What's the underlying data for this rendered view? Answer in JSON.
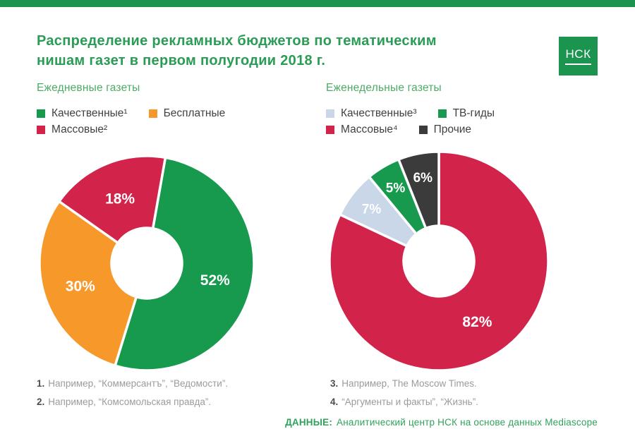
{
  "header": {
    "title_line1": "Распределение рекламных бюджетов по тематическим",
    "title_line2": "нишам газет в первом полугодии 2018 г.",
    "logo": "НСК"
  },
  "source": {
    "label": "ДАННЫЕ:",
    "text": "Аналитический центр НСК на основе данных Mediascope"
  },
  "colors": {
    "brand_green": "#1B9450",
    "title_green": "#2A9C55",
    "subtitle_green": "#4CAC64",
    "slice_green": "#189A4E",
    "slice_orange": "#F7982B",
    "slice_crimson": "#D2234B",
    "slice_lightblue": "#C9D7E8",
    "slice_dark": "#3B3B3B",
    "legend_text": "#414042",
    "footnote_number": "#4D4D4D",
    "footnote_text": "#9B9B9B"
  },
  "chart_data": [
    {
      "type": "pie",
      "subtype": "donut",
      "title": "Ежедневные газеты",
      "unit": "%",
      "start_angle_deg": 10,
      "slices": [
        {
          "label": "Качественные¹",
          "value": 52,
          "color": "#189A4E"
        },
        {
          "label": "Бесплатные",
          "value": 30,
          "color": "#F7982B"
        },
        {
          "label": "Массовые²",
          "value": 18,
          "color": "#D2234B"
        }
      ],
      "legend": [
        {
          "label": "Качественные¹",
          "color": "#189A4E"
        },
        {
          "label": "Бесплатные",
          "color": "#F7982B"
        },
        {
          "label": "Массовые²",
          "color": "#D2234B"
        }
      ],
      "footnotes": [
        {
          "num": "1.",
          "text": "Например, “Коммерсантъ”, “Ведомости”."
        },
        {
          "num": "2.",
          "text": "Например, “Комсомольская правда”."
        }
      ]
    },
    {
      "type": "pie",
      "subtype": "donut",
      "title": "Еженедельные газеты",
      "unit": "%",
      "start_angle_deg": 0,
      "slices": [
        {
          "label": "Массовые⁴",
          "value": 82,
          "color": "#D2234B"
        },
        {
          "label": "Качественные³",
          "value": 7,
          "color": "#C9D7E8"
        },
        {
          "label": "ТВ-гиды",
          "value": 5,
          "color": "#189A4E"
        },
        {
          "label": "Прочие",
          "value": 6,
          "color": "#3B3B3B"
        }
      ],
      "legend": [
        {
          "label": "Качественные³",
          "color": "#C9D7E8"
        },
        {
          "label": "ТВ-гиды",
          "color": "#189A4E"
        },
        {
          "label": "Массовые⁴",
          "color": "#D2234B"
        },
        {
          "label": "Прочие",
          "color": "#3B3B3B"
        }
      ],
      "footnotes": [
        {
          "num": "3.",
          "text": "Например, The Moscow Times."
        },
        {
          "num": "4.",
          "text": "“Аргументы и факты”, “Жизнь”."
        }
      ]
    }
  ]
}
